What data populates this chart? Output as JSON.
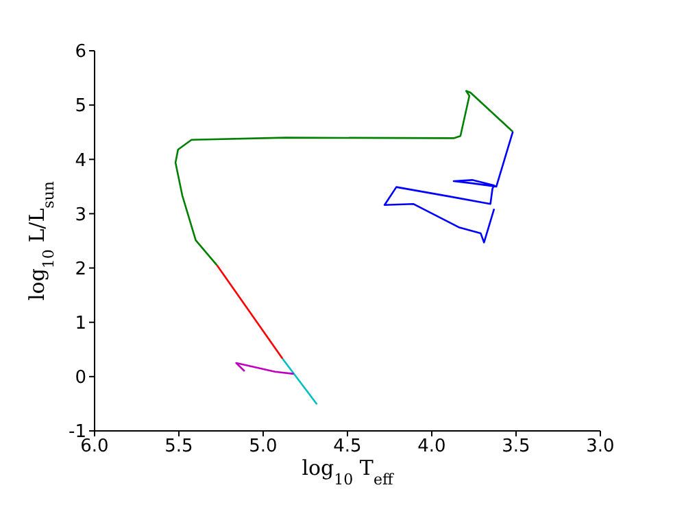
{
  "chart_data": {
    "type": "line",
    "xlabel": "log$_{10}$ T$_{eff}$",
    "ylabel": "log$_{10}$ L/L$_{sun}$",
    "xlim": [
      6.0,
      3.0
    ],
    "xticks": [
      {
        "value": 6.0,
        "label": "6.0"
      },
      {
        "value": 5.5,
        "label": "5.5"
      },
      {
        "value": 5.0,
        "label": "5.0"
      },
      {
        "value": 4.5,
        "label": "4.5"
      },
      {
        "value": 4.0,
        "label": "4.0"
      },
      {
        "value": 3.5,
        "label": "3.5"
      },
      {
        "value": 3.0,
        "label": "3.0"
      }
    ],
    "ylim": [
      -1,
      6
    ],
    "yticks": [
      -1,
      0,
      1,
      2,
      3,
      4,
      5,
      6
    ],
    "grid": false,
    "marker": "none",
    "line_style": "solid",
    "series": [
      {
        "color": "#00bfbf",
        "x": [
          4.885,
          4.681
        ],
        "values": [
          0.33,
          -0.51
        ]
      },
      {
        "color": "#ff0000",
        "x": [
          5.274,
          4.885
        ],
        "values": [
          2.05,
          0.33
        ]
      },
      {
        "color": "#bf00bf",
        "x": [
          4.819,
          4.93,
          5.16,
          5.11
        ],
        "values": [
          0.05,
          0.09,
          0.25,
          0.1
        ]
      },
      {
        "color": "#008000",
        "x": [
          5.274,
          5.4,
          5.48,
          5.52,
          5.505,
          5.425,
          4.867,
          3.87,
          3.83,
          3.777,
          3.796,
          3.77,
          3.519
        ],
        "values": [
          2.05,
          2.51,
          3.34,
          3.94,
          4.18,
          4.36,
          4.4,
          4.39,
          4.43,
          5.17,
          5.26,
          5.23,
          4.51
        ]
      },
      {
        "color": "#0000ff",
        "x": [
          3.519,
          3.617,
          3.76,
          3.87,
          3.76,
          3.63,
          3.64,
          3.652,
          3.9,
          4.21,
          4.28,
          4.11,
          3.84,
          3.71,
          3.69,
          3.63
        ],
        "values": [
          4.51,
          3.5,
          3.56,
          3.6,
          3.62,
          3.52,
          3.46,
          3.18,
          3.32,
          3.49,
          3.16,
          3.18,
          2.75,
          2.64,
          2.47,
          3.09
        ]
      }
    ]
  }
}
